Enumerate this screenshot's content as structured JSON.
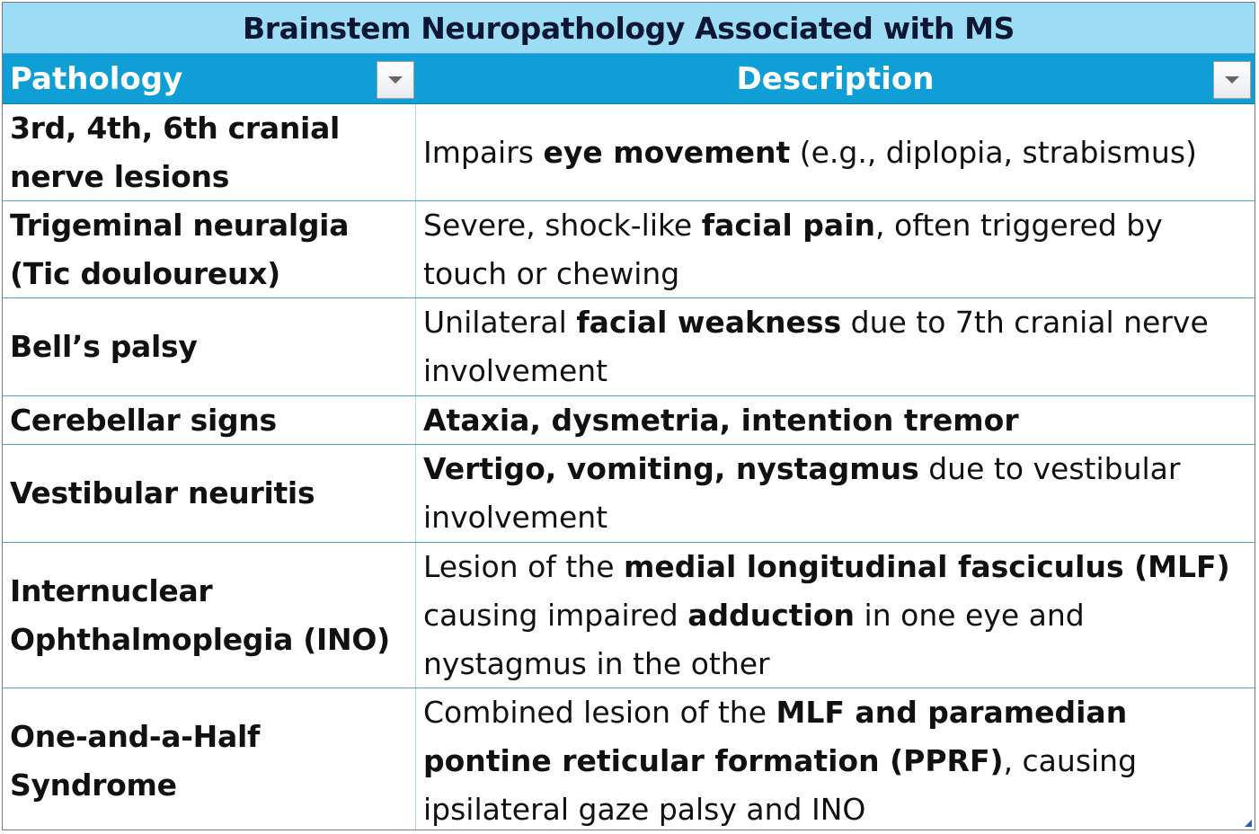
{
  "table": {
    "title": "Brainstem Neuropathology Associated with MS",
    "headers": [
      "Pathology",
      "Description"
    ],
    "filter_icon": "dropdown-arrow",
    "colors": {
      "title_bg": "#9ddcf5",
      "header_bg": "#0f9ed5",
      "header_text": "#ffffff",
      "border": "#4aa8d0"
    },
    "rows": [
      {
        "pathology": "3rd, 4th, 6th cranial nerve lesions",
        "description": [
          {
            "t": "Impairs "
          },
          {
            "t": "eye movement",
            "b": true
          },
          {
            "t": " (e.g., diplopia, strabismus)"
          }
        ]
      },
      {
        "pathology": "Trigeminal neuralgia (Tic douloureux)",
        "description": [
          {
            "t": "Severe, shock-like "
          },
          {
            "t": "facial pain",
            "b": true
          },
          {
            "t": ", often triggered by touch or chewing"
          }
        ]
      },
      {
        "pathology": "Bell’s palsy",
        "description": [
          {
            "t": "Unilateral "
          },
          {
            "t": "facial weakness",
            "b": true
          },
          {
            "t": " due to 7th cranial nerve involvement"
          }
        ]
      },
      {
        "pathology": "Cerebellar signs",
        "description": [
          {
            "t": "Ataxia, dysmetria, intention tremor",
            "b": true
          }
        ]
      },
      {
        "pathology": "Vestibular neuritis",
        "description": [
          {
            "t": "Vertigo, vomiting, nystagmus",
            "b": true
          },
          {
            "t": " due to vestibular involvement"
          }
        ]
      },
      {
        "pathology": "Internuclear Ophthalmoplegia (INO)",
        "description": [
          {
            "t": "Lesion of the "
          },
          {
            "t": "medial longitudinal fasciculus (MLF)",
            "b": true
          },
          {
            "t": " causing impaired "
          },
          {
            "t": "adduction",
            "b": true
          },
          {
            "t": " in one eye and nystagmus in the other"
          }
        ]
      },
      {
        "pathology": "One-and-a-Half Syndrome",
        "description": [
          {
            "t": "Combined lesion of the "
          },
          {
            "t": "MLF and paramedian pontine reticular formation (PPRF)",
            "b": true
          },
          {
            "t": ", causing ipsilateral gaze palsy and INO"
          }
        ]
      }
    ]
  }
}
